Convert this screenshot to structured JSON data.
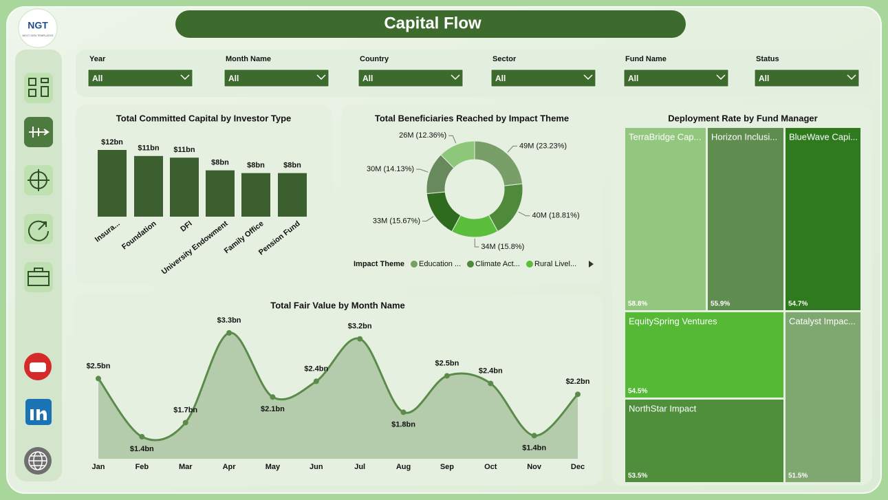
{
  "header": {
    "logo": "NGT",
    "logo_caption": "NEXT GEN TEMPLATES",
    "title": "Capital Flow"
  },
  "filters": [
    {
      "label": "Year",
      "value": "All"
    },
    {
      "label": "Month Name",
      "value": "All"
    },
    {
      "label": "Country",
      "value": "All"
    },
    {
      "label": "Sector",
      "value": "All"
    },
    {
      "label": "Fund Name",
      "value": "All"
    },
    {
      "label": "Status",
      "value": "All"
    }
  ],
  "chart_data": [
    {
      "type": "bar",
      "title": "Total Committed Capital by Investor Type",
      "categories": [
        "Insura...",
        "Foundation",
        "DFI",
        "University Endowment",
        "Family Office",
        "Pension Fund"
      ],
      "values": [
        12.1,
        11.0,
        10.7,
        8.4,
        7.9,
        7.9
      ],
      "value_labels": [
        "$12bn",
        "$11bn",
        "$11bn",
        "$8bn",
        "$8bn",
        "$8bn"
      ],
      "color": "#3b5f2f"
    },
    {
      "type": "donut",
      "title": "Total Beneficiaries Reached by Impact Theme",
      "legend_title": "Impact Theme",
      "categories": [
        "Education ...",
        "Climate Act...",
        "Rural Livel...",
        null,
        null,
        null
      ],
      "values": [
        23.23,
        18.81,
        15.8,
        15.67,
        14.13,
        12.36
      ],
      "value_labels": [
        "49M (23.23%)",
        "40M (18.81%)",
        "34M (15.8%)",
        "33M (15.67%)",
        "30M (14.13%)",
        "26M (12.36%)"
      ],
      "colors": [
        "#789f68",
        "#4e8a3a",
        "#5bbd3c",
        "#2e6b1e",
        "#67895b",
        "#8dc87a"
      ]
    },
    {
      "type": "treemap",
      "title": "Deployment Rate by Fund Manager",
      "categories": [
        "TerraBridge Cap...",
        "Horizon Inclusi...",
        "BlueWave Capi...",
        "EquitySpring Ventures",
        "NorthStar Impact",
        "Catalyst Impac..."
      ],
      "values": [
        58.8,
        55.9,
        54.7,
        54.5,
        53.5,
        51.5
      ],
      "value_labels": [
        "58.8%",
        "55.9%",
        "54.7%",
        "54.5%",
        "53.5%",
        "51.5%"
      ],
      "colors": [
        "#93c77f",
        "#5f8c4f",
        "#2f7a1f",
        "#55b935",
        "#4f8f3c",
        "#7fa870"
      ]
    },
    {
      "type": "line",
      "title": "Total Fair Value by Month Name",
      "categories": [
        "Jan",
        "Feb",
        "Mar",
        "Apr",
        "May",
        "Jun",
        "Jul",
        "Aug",
        "Sep",
        "Oct",
        "Nov",
        "Dec"
      ],
      "values": [
        2.46,
        1.39,
        1.65,
        3.3,
        2.12,
        2.41,
        3.19,
        1.84,
        2.51,
        2.37,
        1.41,
        2.17
      ],
      "value_labels": [
        "$2.5bn",
        "$1.4bn",
        "$1.7bn",
        "$3.3bn",
        "$2.1bn",
        "$2.4bn",
        "$3.2bn",
        "$1.8bn",
        "$2.5bn",
        "$2.4bn",
        "$1.4bn",
        "$2.2bn"
      ],
      "color": "#5b8a4b"
    }
  ]
}
